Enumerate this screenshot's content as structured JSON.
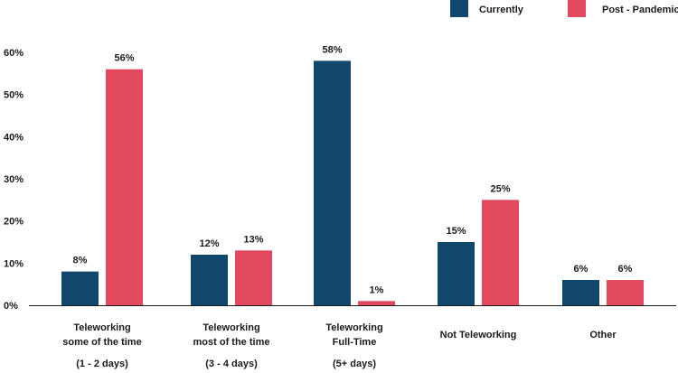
{
  "chart_data": {
    "type": "bar",
    "title": "",
    "xlabel": "",
    "ylabel": "",
    "ylim": [
      0,
      60
    ],
    "grid": false,
    "legend_position": "top-right",
    "y_ticks": [
      "0%",
      "10%",
      "20%",
      "30%",
      "40%",
      "50%",
      "60%"
    ],
    "categories": [
      [
        "Teleworking",
        "some of the time",
        "",
        "(1 - 2 days)"
      ],
      [
        "Teleworking",
        "most of the time",
        "",
        "(3 - 4 days)"
      ],
      [
        "Teleworking",
        "Full-Time",
        "",
        "(5+ days)"
      ],
      [
        "",
        "Not Teleworking"
      ],
      [
        "",
        "Other"
      ]
    ],
    "series": [
      {
        "name": "Currently",
        "color": "#12476d",
        "values": [
          8,
          12,
          58,
          15,
          6
        ],
        "labels": [
          "8%",
          "12%",
          "58%",
          "15%",
          "6%"
        ]
      },
      {
        "name": "Post - Pandemic",
        "color": "#e2495f",
        "values": [
          56,
          13,
          1,
          25,
          6
        ],
        "labels": [
          "56%",
          "13%",
          "1%",
          "25%",
          "6%"
        ]
      }
    ]
  }
}
